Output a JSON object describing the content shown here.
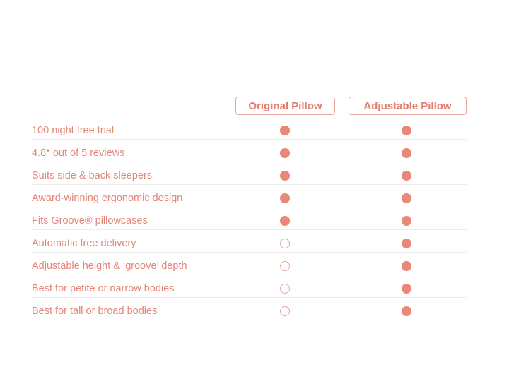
{
  "columns": {
    "original": "Original Pillow",
    "adjustable": "Adjustable Pillow"
  },
  "colors": {
    "accent": "#e9877a",
    "label_text": "#e38678",
    "header_border": "#e9a79c",
    "divider": "#ececec"
  },
  "features": [
    {
      "label": "100 night free trial",
      "original": true,
      "adjustable": true
    },
    {
      "label": "4.8* out of 5 reviews",
      "original": true,
      "adjustable": true
    },
    {
      "label": "Suits side & back sleepers",
      "original": true,
      "adjustable": true
    },
    {
      "label": "Award-winning ergonomic design",
      "original": true,
      "adjustable": true
    },
    {
      "label": "Fits Groove® pillowcases",
      "original": true,
      "adjustable": true
    },
    {
      "label": "Automatic free delivery",
      "original": false,
      "adjustable": true
    },
    {
      "label": "Adjustable height & ‘groove’ depth",
      "original": false,
      "adjustable": true
    },
    {
      "label": "Best for petite or narrow bodies",
      "original": false,
      "adjustable": true
    },
    {
      "label": "Best for tall or broad bodies",
      "original": false,
      "adjustable": true
    }
  ]
}
